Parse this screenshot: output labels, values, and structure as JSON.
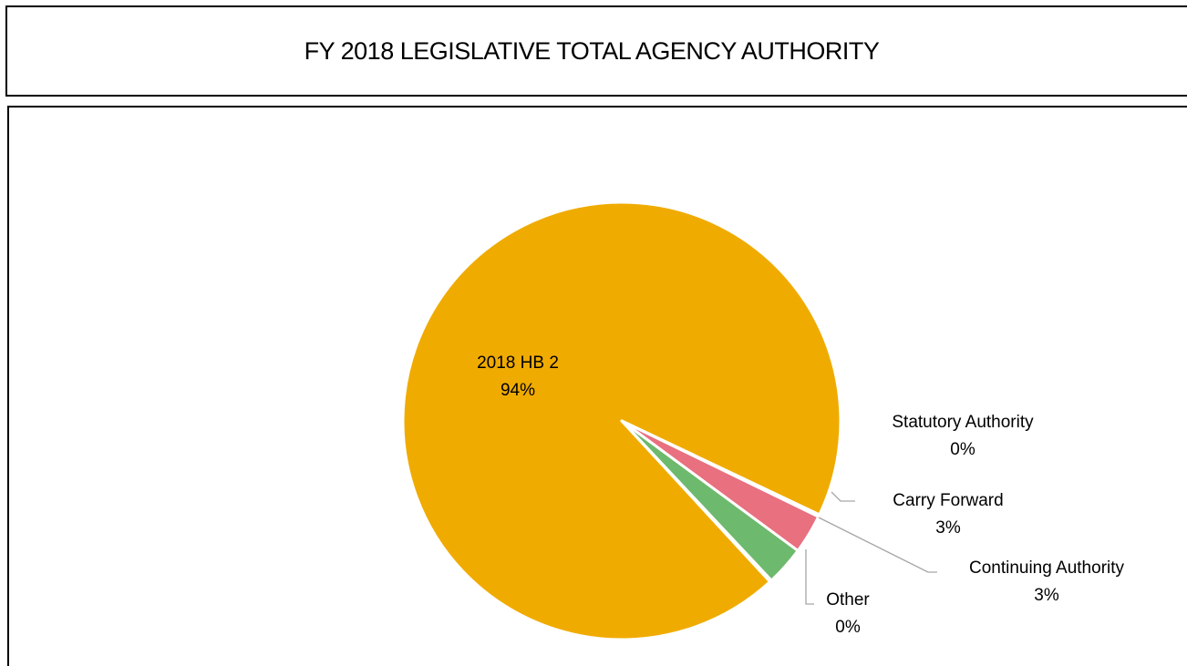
{
  "title": "FY 2018 LEGISLATIVE TOTAL AGENCY AUTHORITY",
  "chart_data": {
    "type": "pie",
    "title": "FY 2018 LEGISLATIVE TOTAL AGENCY AUTHORITY",
    "slices": [
      {
        "name": "2018 HB 2",
        "value": 94,
        "label": "94%",
        "color": "#F0AB00"
      },
      {
        "name": "Statutory Authority",
        "value": 0,
        "label": "0%",
        "color": "#C0504D"
      },
      {
        "name": "Carry Forward",
        "value": 3,
        "label": "3%",
        "color": "#E8707F"
      },
      {
        "name": "Continuing Authority",
        "value": 3,
        "label": "3%",
        "color": "#6DB96D"
      },
      {
        "name": "Other",
        "value": 0,
        "label": "0%",
        "color": "#4F81BD"
      }
    ],
    "legend": "none",
    "label_style": "category name and percentage"
  }
}
